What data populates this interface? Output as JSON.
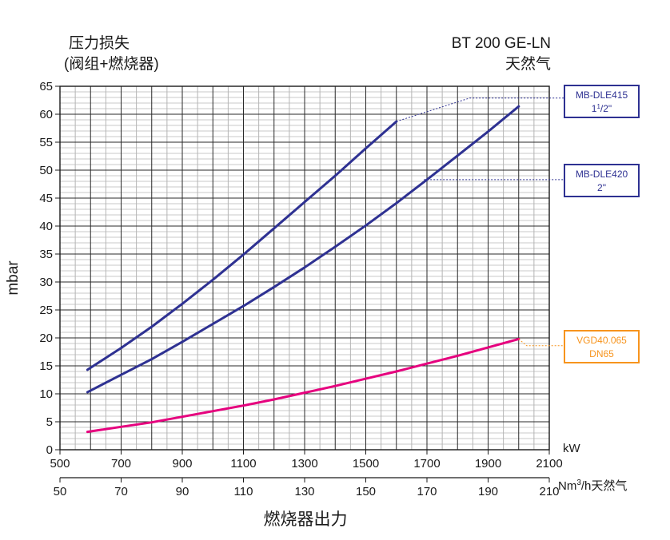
{
  "header": {
    "left_line1": "压力损失",
    "left_line2": "(阀组+燃烧器)",
    "right_line1": "BT 200 GE-LN",
    "right_line2": "天然气"
  },
  "colors": {
    "blue": "#2e3192",
    "magenta": "#e6007e",
    "orange": "#f7941d"
  },
  "chart_data": {
    "type": "line",
    "ylabel": "mbar",
    "xlabel": "燃烧器出力",
    "x_unit": "kW",
    "x2_unit": "Nm³/h天然气",
    "xlim": [
      500,
      2100
    ],
    "ylim": [
      0,
      65
    ],
    "x_ticks": [
      "500",
      "700",
      "900",
      "1100",
      "1300",
      "1500",
      "1700",
      "1900",
      "2100"
    ],
    "x2_ticks": [
      "50",
      "70",
      "90",
      "110",
      "130",
      "150",
      "170",
      "190",
      "210"
    ],
    "y_ticks": [
      "0",
      "5",
      "10",
      "15",
      "20",
      "25",
      "30",
      "35",
      "40",
      "45",
      "50",
      "55",
      "60",
      "65"
    ],
    "grid": true,
    "series": [
      {
        "name_line1": "MB-DLE415",
        "name_line2": "1",
        "name_sup": "1",
        "name_sub": "/2\"",
        "color": "#2e3192",
        "x": [
          590,
          700,
          800,
          900,
          1000,
          1100,
          1200,
          1300,
          1400,
          1500,
          1600
        ],
        "y": [
          14.3,
          18.2,
          22.0,
          26.1,
          30.4,
          34.9,
          39.6,
          44.3,
          49.0,
          53.9,
          58.7
        ]
      },
      {
        "name_line1": "MB-DLE420",
        "name_line2": "2\"",
        "color": "#2e3192",
        "x": [
          590,
          700,
          800,
          900,
          1000,
          1100,
          1200,
          1300,
          1400,
          1500,
          1600,
          1700,
          1800,
          1900,
          2000
        ],
        "y": [
          10.3,
          13.4,
          16.2,
          19.3,
          22.5,
          25.7,
          29.1,
          32.6,
          36.3,
          40.1,
          44.1,
          48.3,
          52.6,
          56.9,
          61.4
        ]
      },
      {
        "name_line1": "VGD40.065",
        "name_line2": "DN65",
        "color": "#e6007e",
        "label_color": "#f7941d",
        "x": [
          590,
          700,
          800,
          900,
          1000,
          1100,
          1200,
          1300,
          1400,
          1500,
          1600,
          1700,
          1800,
          1900,
          2000
        ],
        "y": [
          3.2,
          4.1,
          4.9,
          5.9,
          6.9,
          7.9,
          9.0,
          10.2,
          11.4,
          12.7,
          14.0,
          15.4,
          16.8,
          18.3,
          19.8
        ]
      }
    ]
  }
}
